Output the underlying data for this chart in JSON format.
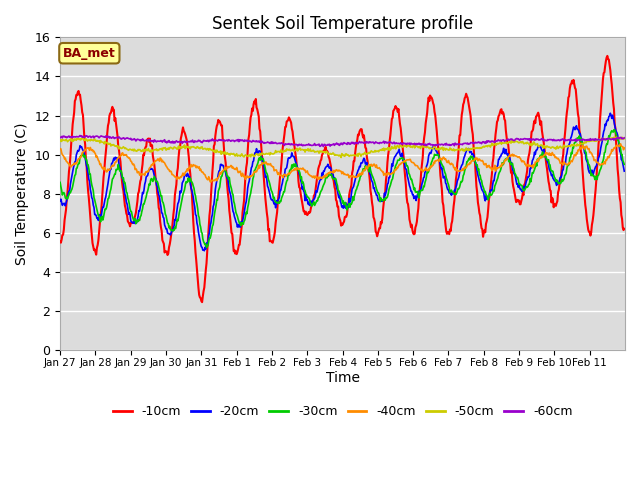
{
  "title": "Sentek Soil Temperature profile",
  "xlabel": "Time",
  "ylabel": "Soil Temperature (C)",
  "ylim": [
    0,
    16
  ],
  "yticks": [
    0,
    2,
    4,
    6,
    8,
    10,
    12,
    14,
    16
  ],
  "background_color": "#dcdcdc",
  "annotation_text": "BA_met",
  "annotation_color": "#8b0000",
  "annotation_bg": "#ffff99",
  "line_colors": {
    "-10cm": "#ff0000",
    "-20cm": "#0000ff",
    "-30cm": "#00cc00",
    "-40cm": "#ff8c00",
    "-50cm": "#cccc00",
    "-60cm": "#9900cc"
  },
  "x_labels": [
    "Jan 27",
    "Jan 28",
    "Jan 29",
    "Jan 30",
    "Jan 31",
    "Feb 1",
    "Feb 2",
    "Feb 3",
    "Feb 4",
    "Feb 5",
    "Feb 6",
    "Feb 7",
    "Feb 8",
    "Feb 9",
    "Feb 10",
    "Feb 11"
  ],
  "num_points_per_day": 48,
  "num_days": 16
}
